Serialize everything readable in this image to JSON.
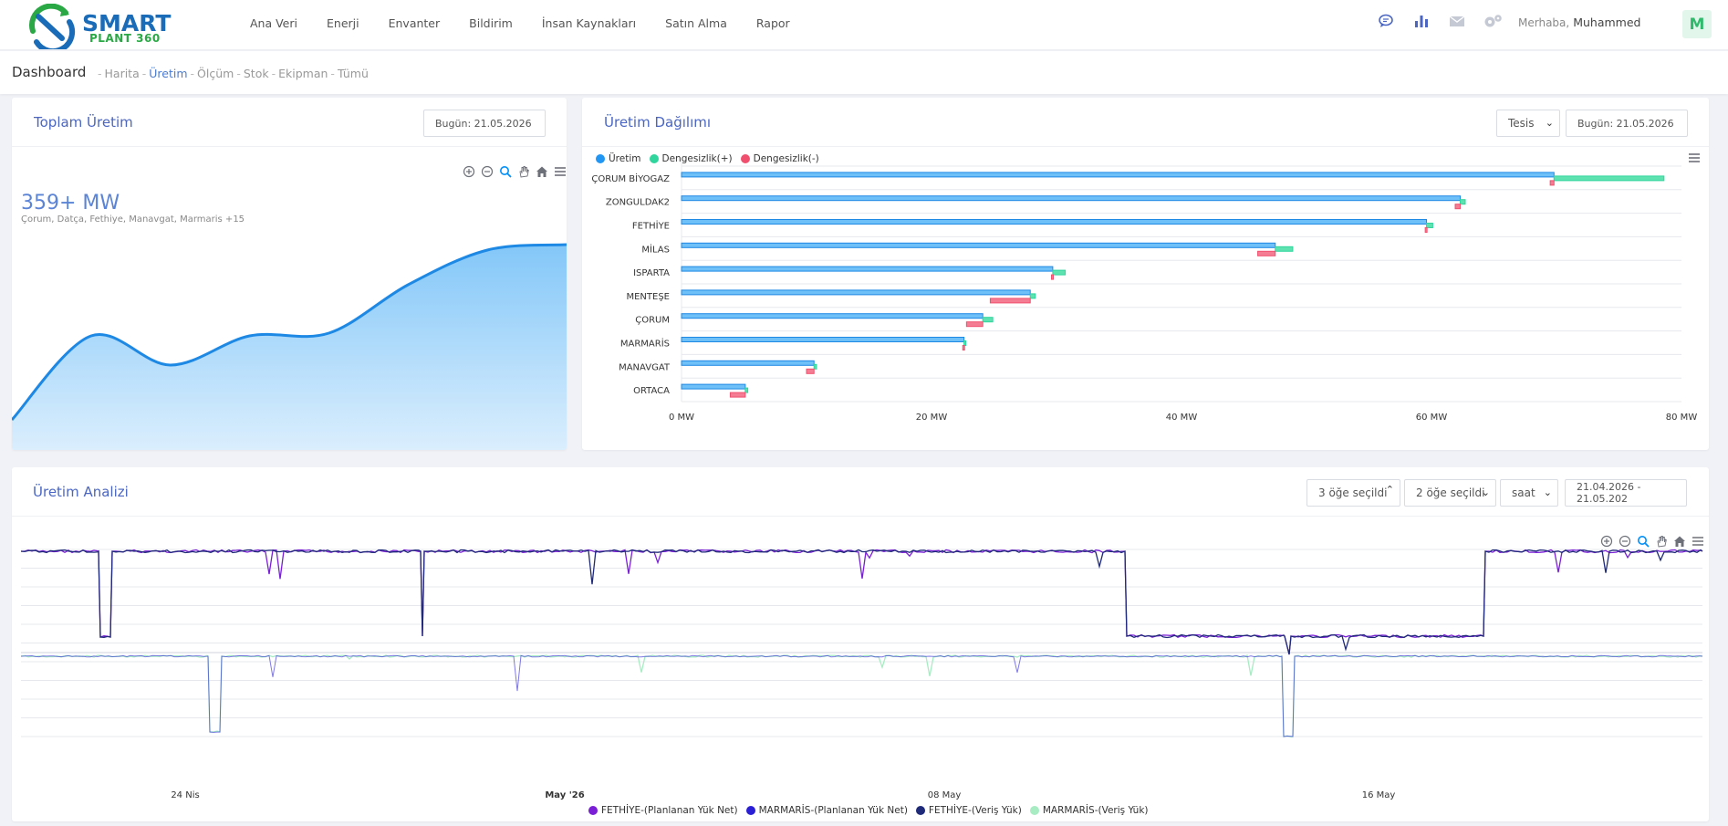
{
  "brand": {
    "line1": "SMART",
    "line2": "PLANT 360"
  },
  "nav": [
    {
      "label": "Ana Veri"
    },
    {
      "label": "Enerji"
    },
    {
      "label": "Envanter"
    },
    {
      "label": "Bildirim"
    },
    {
      "label": "İnsan Kaynakları"
    },
    {
      "label": "Satın Alma"
    },
    {
      "label": "Rapor"
    }
  ],
  "top_icons": [
    "chat-icon",
    "bar-chart-icon",
    "mail-icon",
    "gears-icon"
  ],
  "user": {
    "greeting": "Merhaba,",
    "name": "Muhammed",
    "initial": "M"
  },
  "breadcrumb": {
    "title": "Dashboard",
    "items": [
      {
        "label": "Harita",
        "active": false
      },
      {
        "label": "Üretim",
        "active": true
      },
      {
        "label": "Ölçüm",
        "active": false
      },
      {
        "label": "Stok",
        "active": false
      },
      {
        "label": "Ekipman",
        "active": false
      },
      {
        "label": "Tümü",
        "active": false
      }
    ]
  },
  "total_production": {
    "title": "Toplam Üretim",
    "date": "Bugün: 21.05.2026",
    "value": "359+ MW",
    "subtitle": "Çorum, Datça, Fethiye, Manavgat, Marmaris +15"
  },
  "distribution": {
    "title": "Üretim Dağılımı",
    "select": "Tesis",
    "date": "Bugün: 21.05.2026",
    "legend": [
      {
        "name": "Üretim",
        "color": "#2196f3"
      },
      {
        "name": "Dengesizlik(+)",
        "color": "#2fd59c"
      },
      {
        "name": "Dengesizlik(-)",
        "color": "#f0506e"
      }
    ]
  },
  "analysis": {
    "title": "Üretim Analizi",
    "filter1": "3 öğe seçildi",
    "filter2": "2 öğe seçildi",
    "interval": "saat",
    "daterange": "21.04.2026 - 21.05.202",
    "legend": [
      {
        "name": "FETHİYE-(Planlanan Yük Net)",
        "color": "#7a1fd6"
      },
      {
        "name": "MARMARİS-(Planlanan Yük Net)",
        "color": "#2b1fd6"
      },
      {
        "name": "FETHİYE-(Veriş Yük)",
        "color": "#1f2a78"
      },
      {
        "name": "MARMARİS-(Veriş Yük)",
        "color": "#a8ecc4"
      }
    ]
  },
  "chart_data": [
    {
      "type": "area",
      "values": [
        0,
        92,
        60,
        92,
        95,
        148,
        186,
        192
      ]
    },
    {
      "type": "bar",
      "orientation": "horizontal",
      "categories": [
        "ÇORUM BİYOGAZ",
        "ZONGULDAK2",
        "FETHİYE",
        "MİLAS",
        "ISPARTA",
        "MENTEŞE",
        "ÇORUM",
        "MARMARİS",
        "MANAVGAT",
        "ORTACA"
      ],
      "series": [
        {
          "name": "Üretim",
          "values": [
            69.8,
            62.3,
            59.6,
            47.5,
            29.7,
            27.9,
            24.1,
            22.6,
            10.6,
            5.1
          ]
        },
        {
          "name": "Dengesizlik(+)",
          "values": [
            8.8,
            0.4,
            0.5,
            1.4,
            1.0,
            0.4,
            0.8,
            0.1,
            0.2,
            0.2
          ]
        },
        {
          "name": "Dengesizlik(-)",
          "values": [
            -0.3,
            -0.4,
            -0.1,
            -1.4,
            -0.1,
            -3.2,
            -1.3,
            -0.1,
            -0.6,
            -1.2
          ]
        }
      ],
      "xlim": [
        0,
        80
      ],
      "xticks": [
        "0 MW",
        "20 MW",
        "40 MW",
        "60 MW",
        "80 MW"
      ]
    },
    {
      "type": "line",
      "xticks": [
        "24 Nis",
        "May '26",
        "08 May",
        "16 May"
      ]
    }
  ]
}
